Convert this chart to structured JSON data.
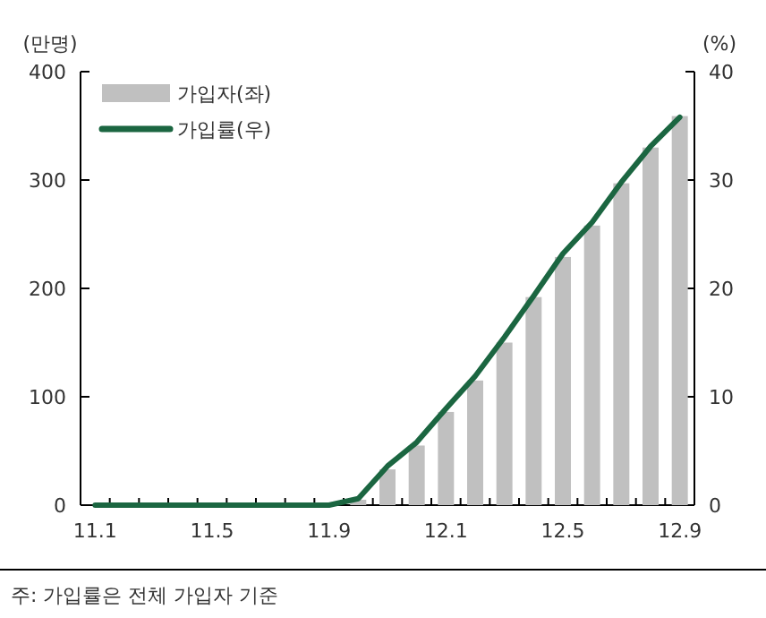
{
  "chart_data": {
    "type": "bar",
    "ylabel": "(만명)",
    "y2label": "(%)",
    "categories": [
      "11.1",
      null,
      null,
      null,
      "11.5",
      null,
      null,
      null,
      "11.9",
      null,
      null,
      null,
      "12.1",
      null,
      null,
      null,
      "12.5",
      null,
      null,
      null,
      "12.9"
    ],
    "series": [
      {
        "name": "가입자(좌)",
        "color": "#c0c0c0",
        "values": [
          0,
          0,
          0,
          0,
          0,
          0,
          0,
          0,
          0,
          5,
          33,
          55,
          86,
          115,
          150,
          192,
          229,
          258,
          297,
          330,
          359
        ]
      },
      {
        "name": "가입률(우)",
        "type": "line",
        "axis": "y2",
        "color": "#1b6641",
        "values": [
          0,
          0,
          0,
          0,
          0,
          0,
          0,
          0,
          0,
          0.6,
          3.6,
          5.8,
          8.9,
          11.9,
          15.5,
          19.3,
          23.2,
          26.1,
          29.8,
          33.1,
          35.8
        ]
      }
    ],
    "ylim": [
      0,
      400
    ],
    "yticks": [
      0,
      100,
      200,
      300,
      400
    ],
    "y2lim": [
      0,
      40
    ],
    "y2ticks": [
      0,
      10,
      20,
      30,
      40
    ],
    "legend": "top left",
    "annotations": [
      "주: 가입률은 전체 가입자 기준"
    ]
  }
}
